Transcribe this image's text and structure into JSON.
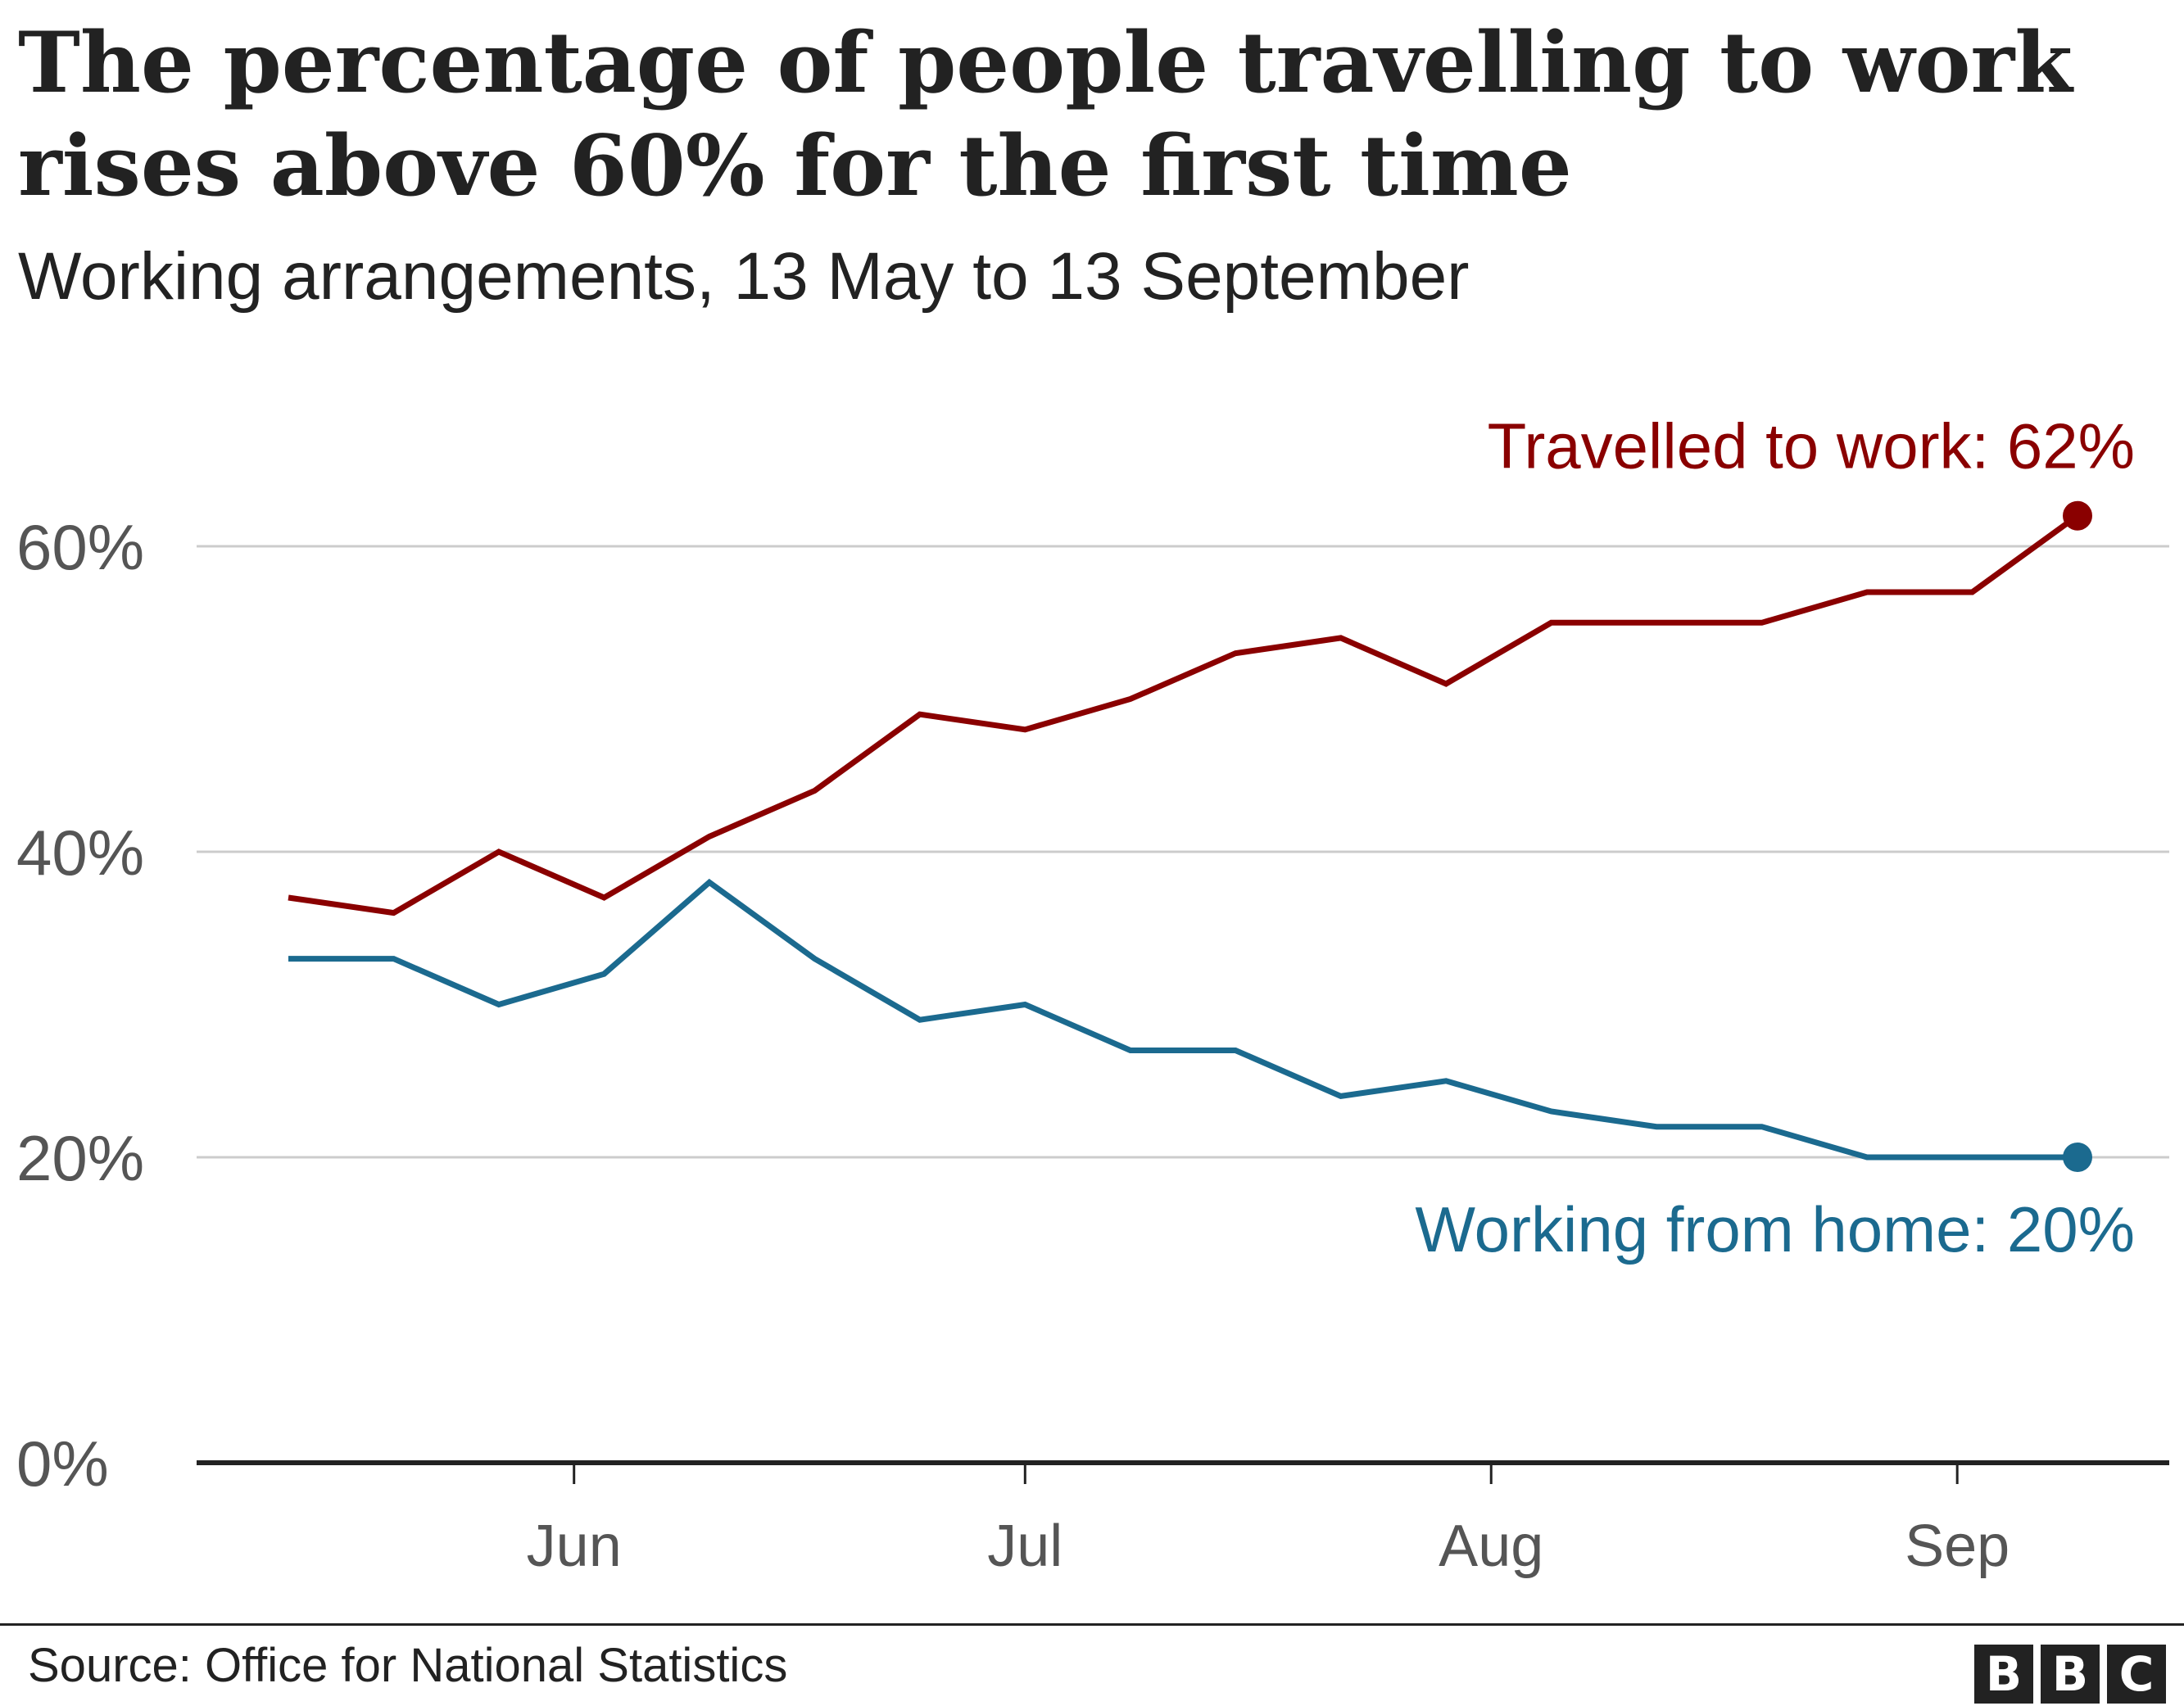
{
  "chart_data": {
    "type": "line",
    "title": "The percentage of people travelling to work rises above 60% for the first time",
    "subtitle": "Working arrangements, 13 May to 13 September",
    "x": [
      "2021-05-13",
      "2021-05-20",
      "2021-05-27",
      "2021-06-03",
      "2021-06-10",
      "2021-06-17",
      "2021-06-24",
      "2021-07-01",
      "2021-07-08",
      "2021-07-15",
      "2021-07-22",
      "2021-07-29",
      "2021-08-05",
      "2021-08-12",
      "2021-08-19",
      "2021-08-26",
      "2021-09-02",
      "2021-09-09"
    ],
    "x_ticks": [
      {
        "date": "2021-06-01",
        "label": "Jun"
      },
      {
        "date": "2021-07-01",
        "label": "Jul"
      },
      {
        "date": "2021-08-01",
        "label": "Aug"
      },
      {
        "date": "2021-09-01",
        "label": "Sep"
      }
    ],
    "ylim": [
      0,
      63
    ],
    "yticks": [
      0,
      20,
      40,
      60
    ],
    "ytick_labels": [
      "0%",
      "20%",
      "40%",
      "60%"
    ],
    "grid": true,
    "series": [
      {
        "key": "travel",
        "name": "Travelled to work",
        "end_label": "Travelled to work: 62%",
        "color": "#8a0000",
        "values": [
          37,
          36,
          40,
          37,
          41,
          44,
          49,
          48,
          50,
          53,
          54,
          51,
          55,
          55,
          55,
          57,
          57,
          62
        ]
      },
      {
        "key": "home",
        "name": "Working from home",
        "end_label": "Working from home: 20%",
        "color": "#1b6a8f",
        "values": [
          33,
          33,
          30,
          32,
          38,
          33,
          29,
          30,
          27,
          27,
          24,
          25,
          23,
          22,
          22,
          20,
          20,
          20
        ]
      }
    ]
  },
  "footer": {
    "source": "Source: Office for National Statistics",
    "logo_letters": [
      "B",
      "B",
      "C"
    ]
  }
}
